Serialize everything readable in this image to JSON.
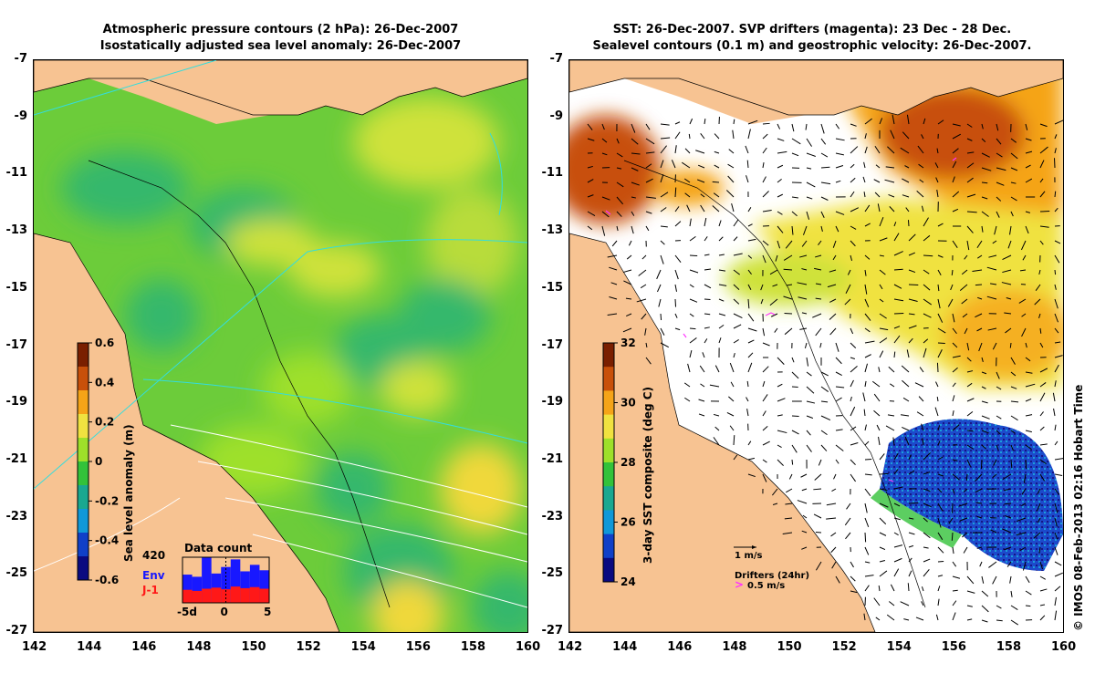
{
  "left_panel": {
    "title_line1": "Atmospheric pressure contours (2 hPa): 26-Dec-2007",
    "title_line2": "Isostatically adjusted sea level anomaly: 26-Dec-2007",
    "colorbar": {
      "label": "Sea level anomaly (m)",
      "ticks": [
        "0.6",
        "0.4",
        "0.2",
        "0",
        "-0.2",
        "-0.4",
        "-0.6"
      ],
      "colors": [
        "#7a1f00",
        "#c8500a",
        "#f5a418",
        "#f0e240",
        "#9ee02a",
        "#33c23a",
        "#1aa890",
        "#1098d8",
        "#1040c8",
        "#0a0a80"
      ]
    },
    "inset": {
      "title": "Data count",
      "count": "420",
      "legend_env": "Env",
      "legend_j1": "J-1",
      "x_ticks": [
        "-5d",
        "0",
        "5"
      ],
      "env_values": [
        260,
        240,
        420,
        270,
        330,
        400,
        290,
        350,
        300
      ],
      "j1_values": [
        120,
        110,
        130,
        140,
        125,
        150,
        135,
        145,
        130
      ],
      "env_color": "#1818ff",
      "j1_color": "#ff1818"
    }
  },
  "right_panel": {
    "title_line1": "SST: 26-Dec-2007. SVP drifters (magenta): 23 Dec - 28 Dec.",
    "title_line2": "Sealevel contours (0.1 m) and geostrophic velocity: 26-Dec-2007.",
    "colorbar": {
      "label": "3-day SST composite (deg C)",
      "ticks": [
        "32",
        "30",
        "28",
        "26",
        "24"
      ],
      "colors": [
        "#7a1f00",
        "#c8500a",
        "#f5a418",
        "#f0e240",
        "#9ee02a",
        "#33c23a",
        "#1aa890",
        "#1098d8",
        "#1040c8",
        "#0a0a80"
      ]
    },
    "velocity_legend": "1 m/s",
    "drifters_legend": "Drifters (24hr)",
    "drifters_speed": "0.5 m/s",
    "drifter_color": "#ff33ff"
  },
  "axes": {
    "x_ticks": [
      "142",
      "144",
      "146",
      "148",
      "150",
      "152",
      "154",
      "156",
      "158",
      "160"
    ],
    "y_ticks": [
      "-7",
      "-9",
      "-11",
      "-13",
      "-15",
      "-17",
      "-19",
      "-21",
      "-23",
      "-25",
      "-27"
    ]
  },
  "colors": {
    "land": "#f7c392",
    "ocean_green": "#6ccc3a",
    "ocean_teal": "#34b86c",
    "ocean_yellow": "#cfe23a",
    "contour_cyan": "#33dddd"
  },
  "credit": "© IMOS 08-Feb-2013 02:16 Hobart Time"
}
